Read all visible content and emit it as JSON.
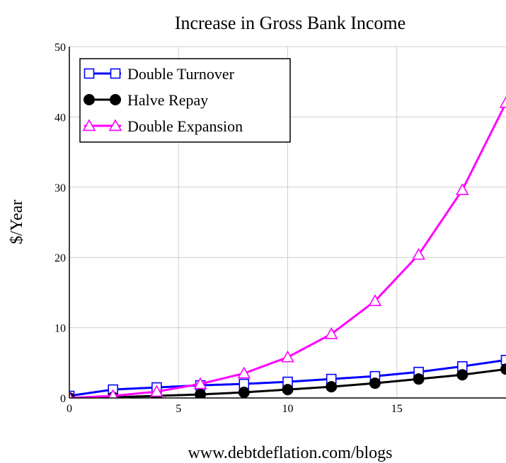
{
  "chart_data": {
    "type": "line",
    "title": "Increase in Gross Bank Income",
    "xlabel": "",
    "ylabel": "$/Year",
    "footer": "www.debtdeflation.com/blogs",
    "xlim": [
      0,
      20
    ],
    "ylim": [
      0,
      50
    ],
    "xticks": [
      0,
      5,
      10,
      15
    ],
    "yticks": [
      0,
      10,
      20,
      30,
      40,
      50
    ],
    "grid": true,
    "legend_position": "top-left",
    "series": [
      {
        "name": "Double Turnover",
        "color": "#0000ff",
        "marker": "square",
        "x": [
          0,
          2,
          4,
          6,
          8,
          10,
          12,
          14,
          16,
          18,
          20
        ],
        "y": [
          0.3,
          1.2,
          1.5,
          1.8,
          2.0,
          2.3,
          2.7,
          3.1,
          3.7,
          4.5,
          5.4
        ]
      },
      {
        "name": "Halve Repay",
        "color": "#000000",
        "marker": "circle",
        "x": [
          0,
          2,
          4,
          6,
          8,
          10,
          12,
          14,
          16,
          18,
          20
        ],
        "y": [
          0,
          0.1,
          0.3,
          0.5,
          0.8,
          1.2,
          1.6,
          2.1,
          2.7,
          3.3,
          4.1
        ]
      },
      {
        "name": "Double Expansion",
        "color": "#ff00ff",
        "marker": "triangle",
        "x": [
          0,
          2,
          4,
          6,
          8,
          10,
          12,
          14,
          16,
          18,
          20
        ],
        "y": [
          0,
          0.3,
          0.9,
          2.0,
          3.5,
          5.8,
          9.1,
          13.8,
          20.4,
          29.6,
          42.0
        ]
      }
    ]
  }
}
